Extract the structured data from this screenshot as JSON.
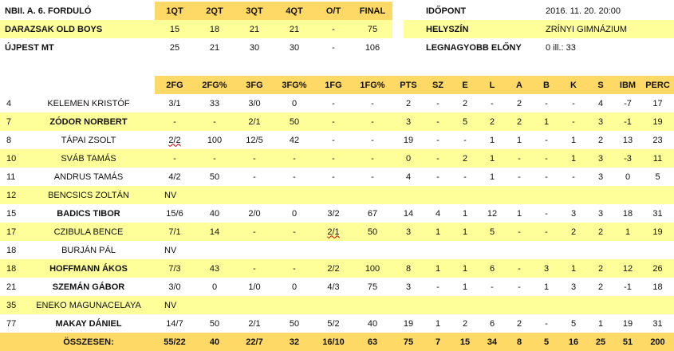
{
  "match": {
    "title": "NBII. A. 6. FORDULÓ",
    "columns": [
      "1QT",
      "2QT",
      "3QT",
      "4QT",
      "O/T",
      "FINAL"
    ],
    "teams": [
      {
        "name": "DARAZSAK OLD BOYS",
        "scores": [
          "15",
          "18",
          "21",
          "21",
          "-",
          "75"
        ]
      },
      {
        "name": "ÚJPEST MT",
        "scores": [
          "25",
          "21",
          "30",
          "30",
          "-",
          "106"
        ]
      }
    ]
  },
  "info": [
    {
      "label": "IDŐPONT",
      "value": "2016. 11. 20. 20:00"
    },
    {
      "label": "HELYSZÍN",
      "value": "ZRÍNYI GIMNÁZIUM"
    },
    {
      "label": "LEGNAGYOBB ELŐNY",
      "value": "0 ill.: 33"
    }
  ],
  "stats": {
    "columns": [
      "2FG",
      "2FG%",
      "3FG",
      "3FG%",
      "1FG",
      "1FG%",
      "PTS",
      "SZ",
      "E",
      "L",
      "A",
      "B",
      "K",
      "S",
      "IBM",
      "PERC"
    ],
    "players": [
      {
        "num": "4",
        "name": "KELEMEN KRISTÓF",
        "bold": false,
        "vals": [
          "3/1",
          "33",
          "3/0",
          "0",
          "-",
          "-",
          "2",
          "-",
          "2",
          "-",
          "2",
          "-",
          "-",
          "4",
          "-7",
          "17"
        ]
      },
      {
        "num": "7",
        "name": "ZÓDOR NORBERT",
        "bold": true,
        "vals": [
          "-",
          "-",
          "2/1",
          "50",
          "-",
          "-",
          "3",
          "-",
          "5",
          "2",
          "2",
          "1",
          "-",
          "3",
          "-1",
          "19"
        ]
      },
      {
        "num": "8",
        "name": "TÁPAI ZSOLT",
        "bold": false,
        "vals": [
          "2/2",
          "100",
          "12/5",
          "42",
          "-",
          "-",
          "19",
          "-",
          "-",
          "1",
          "1",
          "-",
          "1",
          "2",
          "13",
          "23"
        ]
      },
      {
        "num": "10",
        "name": "SVÁB TAMÁS",
        "bold": false,
        "vals": [
          "-",
          "-",
          "-",
          "-",
          "-",
          "-",
          "0",
          "-",
          "2",
          "1",
          "-",
          "-",
          "1",
          "3",
          "-3",
          "11"
        ]
      },
      {
        "num": "11",
        "name": "ANDRUS TAMÁS",
        "bold": false,
        "vals": [
          "4/2",
          "50",
          "-",
          "-",
          "-",
          "-",
          "4",
          "-",
          "-",
          "1",
          "-",
          "-",
          "-",
          "3",
          "0",
          "5"
        ]
      },
      {
        "num": "12",
        "name": "BENCSICS ZOLTÁN",
        "bold": false,
        "vals": [
          "NV"
        ]
      },
      {
        "num": "15",
        "name": "BADICS TIBOR",
        "bold": true,
        "vals": [
          "15/6",
          "40",
          "2/0",
          "0",
          "3/2",
          "67",
          "14",
          "4",
          "1",
          "12",
          "1",
          "-",
          "3",
          "3",
          "18",
          "31"
        ]
      },
      {
        "num": "17",
        "name": "CZIBULA BENCE",
        "bold": false,
        "vals": [
          "7/1",
          "14",
          "-",
          "-",
          "2/1",
          "50",
          "3",
          "1",
          "1",
          "5",
          "-",
          "-",
          "2",
          "2",
          "1",
          "19"
        ]
      },
      {
        "num": "18",
        "name": "BURJÁN PÁL",
        "bold": false,
        "vals": [
          "NV"
        ]
      },
      {
        "num": "18",
        "name": "HOFFMANN ÁKOS",
        "bold": true,
        "vals": [
          "7/3",
          "43",
          "-",
          "-",
          "2/2",
          "100",
          "8",
          "1",
          "1",
          "6",
          "-",
          "3",
          "1",
          "2",
          "12",
          "26"
        ]
      },
      {
        "num": "21",
        "name": "SZEMÁN GÁBOR",
        "bold": true,
        "vals": [
          "3/0",
          "0",
          "1/0",
          "0",
          "4/3",
          "75",
          "3",
          "-",
          "1",
          "-",
          "-",
          "1",
          "3",
          "2",
          "-1",
          "18"
        ]
      },
      {
        "num": "35",
        "name": "ENEKO MAGUNACELAYA",
        "bold": false,
        "vals": [
          "NV"
        ]
      },
      {
        "num": "77",
        "name": "MAKAY DÁNIEL",
        "bold": true,
        "vals": [
          "14/7",
          "50",
          "2/1",
          "50",
          "5/2",
          "40",
          "19",
          "1",
          "2",
          "6",
          "2",
          "-",
          "5",
          "1",
          "19",
          "31"
        ]
      }
    ],
    "total": {
      "label": "ÖSSZESEN:",
      "vals": [
        "55/22",
        "40",
        "22/7",
        "32",
        "16/10",
        "63",
        "75",
        "7",
        "15",
        "34",
        "8",
        "5",
        "16",
        "25",
        "51",
        "200"
      ]
    }
  }
}
